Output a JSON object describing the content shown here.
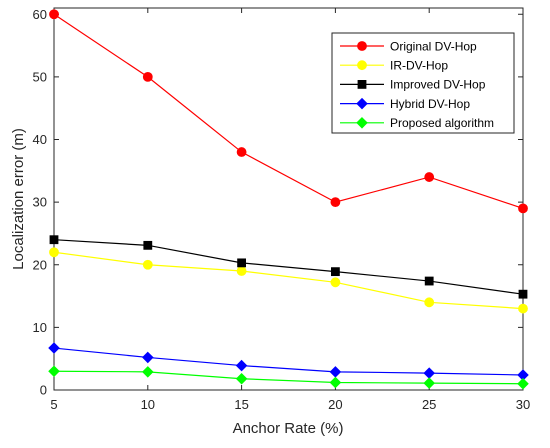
{
  "chart_data": {
    "type": "line",
    "title": "",
    "xlabel": "Anchor Rate (%)",
    "ylabel": "Localization error (m)",
    "x": [
      5,
      10,
      15,
      20,
      25,
      30
    ],
    "xlim": [
      5,
      30
    ],
    "ylim": [
      0,
      61
    ],
    "xticks": [
      "5",
      "10",
      "15",
      "20",
      "25",
      "30"
    ],
    "yticks": [
      "0",
      "10",
      "20",
      "30",
      "40",
      "50",
      "60"
    ],
    "grid": false,
    "legend_position": "top-right",
    "series": [
      {
        "name": "Original DV-Hop",
        "color": "#ff0000",
        "marker": "circle",
        "values": [
          60,
          50,
          38,
          30,
          34,
          29
        ]
      },
      {
        "name": "IR-DV-Hop",
        "color": "#ffff00",
        "marker": "circle",
        "values": [
          22,
          20,
          19,
          17.2,
          14,
          13
        ]
      },
      {
        "name": "Improved DV-Hop",
        "color": "#000000",
        "marker": "square",
        "values": [
          24,
          23.1,
          20.3,
          18.9,
          17.4,
          15.3
        ]
      },
      {
        "name": "Hybrid DV-Hop",
        "color": "#0000ff",
        "marker": "diamond",
        "values": [
          6.7,
          5.2,
          3.9,
          2.9,
          2.7,
          2.4
        ]
      },
      {
        "name": "Proposed algorithm",
        "color": "#00ff00",
        "marker": "diamond",
        "values": [
          3.0,
          2.9,
          1.8,
          1.2,
          1.1,
          1.0
        ]
      }
    ]
  }
}
